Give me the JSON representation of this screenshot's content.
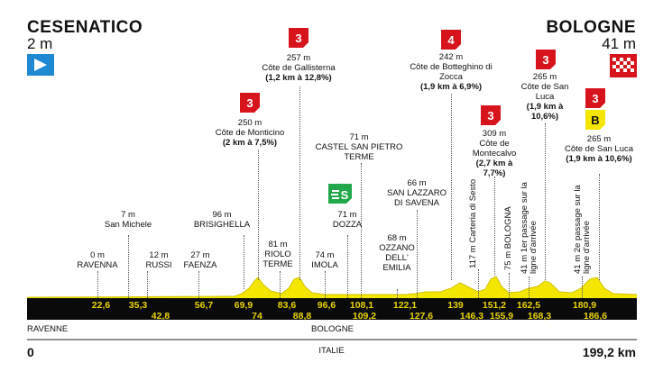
{
  "start": {
    "name": "CESENATICO",
    "altitude": "2 m"
  },
  "finish": {
    "name": "BOLOGNE",
    "altitude": "41 m"
  },
  "distance_start": "0",
  "distance_total": "199,2 km",
  "country": "ITALIE",
  "regions": [
    "RAVENNE",
    "BOLOGNE"
  ],
  "colors": {
    "profile": "#f3e600",
    "band": "#0a0a0a",
    "km_text": "#e8d400",
    "climb_flag": "#d7141c",
    "sprint": "#22a84a",
    "bonus": "#f3e600"
  },
  "places": [
    {
      "alt": "0 m",
      "name": "RAVENNA"
    },
    {
      "alt": "7 m",
      "name": "San Michele"
    },
    {
      "alt": "12 m",
      "name": "RUSSI"
    },
    {
      "alt": "27 m",
      "name": "FAENZA"
    },
    {
      "alt": "96 m",
      "name": "BRISIGHELLA"
    },
    {
      "alt": "81 m",
      "name": "RIOLO TERME"
    },
    {
      "alt": "74 m",
      "name": "IMOLA"
    },
    {
      "alt": "71 m",
      "name": "DOZZA"
    },
    {
      "alt": "71 m",
      "name": "CASTEL SAN PIETRO TERME"
    },
    {
      "alt": "68 m",
      "name": "OZZANO DELL' EMILIA"
    },
    {
      "alt": "66 m",
      "name": "SAN LAZZARO DI SAVENA"
    },
    {
      "alt": "117 m",
      "name": "Carteria di Sesto"
    },
    {
      "alt": "75 m",
      "name": "BOLOGNA"
    },
    {
      "alt": "41 m",
      "name": "1er passage sur la ligne d'arrivée"
    },
    {
      "alt": "41 m",
      "name": "2e passage sur la ligne d'arrivée"
    }
  ],
  "climbs": [
    {
      "cat": "3",
      "alt": "250 m",
      "name": "Côte de Monticino",
      "detail": "(2 km à 7,5%)"
    },
    {
      "cat": "3",
      "alt": "257 m",
      "name": "Côte de Gallisterna",
      "detail": "(1,2 km à 12,8%)"
    },
    {
      "cat": "4",
      "alt": "242 m",
      "name": "Côte de Botteghino di Zocca",
      "detail": "(1,9 km à 6,9%)"
    },
    {
      "cat": "3",
      "alt": "309 m",
      "name": "Côte de Montecalvo",
      "detail": "(2,7 km à 7,7%)"
    },
    {
      "cat": "3",
      "alt": "265 m",
      "name": "Côte de San Luca",
      "detail": "(1,9 km à 10,6%)"
    },
    {
      "cat": "3",
      "alt": "265 m",
      "name": "Côte de San Luca",
      "detail": "(1,9 km à 10,6%)"
    }
  ],
  "bonus_label": "B",
  "km_top": [
    "22,6",
    "35,3",
    "56,7",
    "69,9",
    "83,6",
    "96,6",
    "108,1",
    "122,1",
    "139",
    "151,2",
    "162,5",
    "180,9"
  ],
  "km_bottom": [
    "42,8",
    "74",
    "88,8",
    "109,2",
    "127,6",
    "146,3",
    "155,9",
    "168,3",
    "186,6"
  ]
}
